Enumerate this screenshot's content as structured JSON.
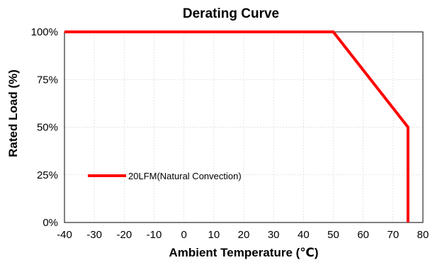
{
  "chart_data": {
    "type": "line",
    "title": "Derating Curve",
    "xlabel": "Ambient Temperature (℃)",
    "ylabel": "Rated Load  (%)",
    "xlim": [
      -40,
      80
    ],
    "ylim": [
      0,
      100
    ],
    "x_ticks": [
      -40,
      -30,
      -20,
      -10,
      0,
      10,
      20,
      30,
      40,
      50,
      60,
      70,
      80
    ],
    "x_tick_labels": [
      "-40",
      "-30",
      "-20",
      "-10",
      "0",
      "10",
      "20",
      "30",
      "40",
      "50",
      "60",
      "70",
      "80"
    ],
    "y_ticks": [
      0,
      25,
      50,
      75,
      100
    ],
    "y_tick_labels": [
      "0%",
      "25%",
      "50%",
      "75%",
      "100%"
    ],
    "grid": true,
    "legend_position": "left",
    "series": [
      {
        "name": "20LFM(Natural Convection)",
        "color": "#ff0000",
        "points": [
          {
            "x": -40,
            "y": 100
          },
          {
            "x": 50,
            "y": 100
          },
          {
            "x": 62.5,
            "y": 75
          },
          {
            "x": 75,
            "y": 50
          },
          {
            "x": 75,
            "y": 0
          }
        ]
      }
    ]
  }
}
